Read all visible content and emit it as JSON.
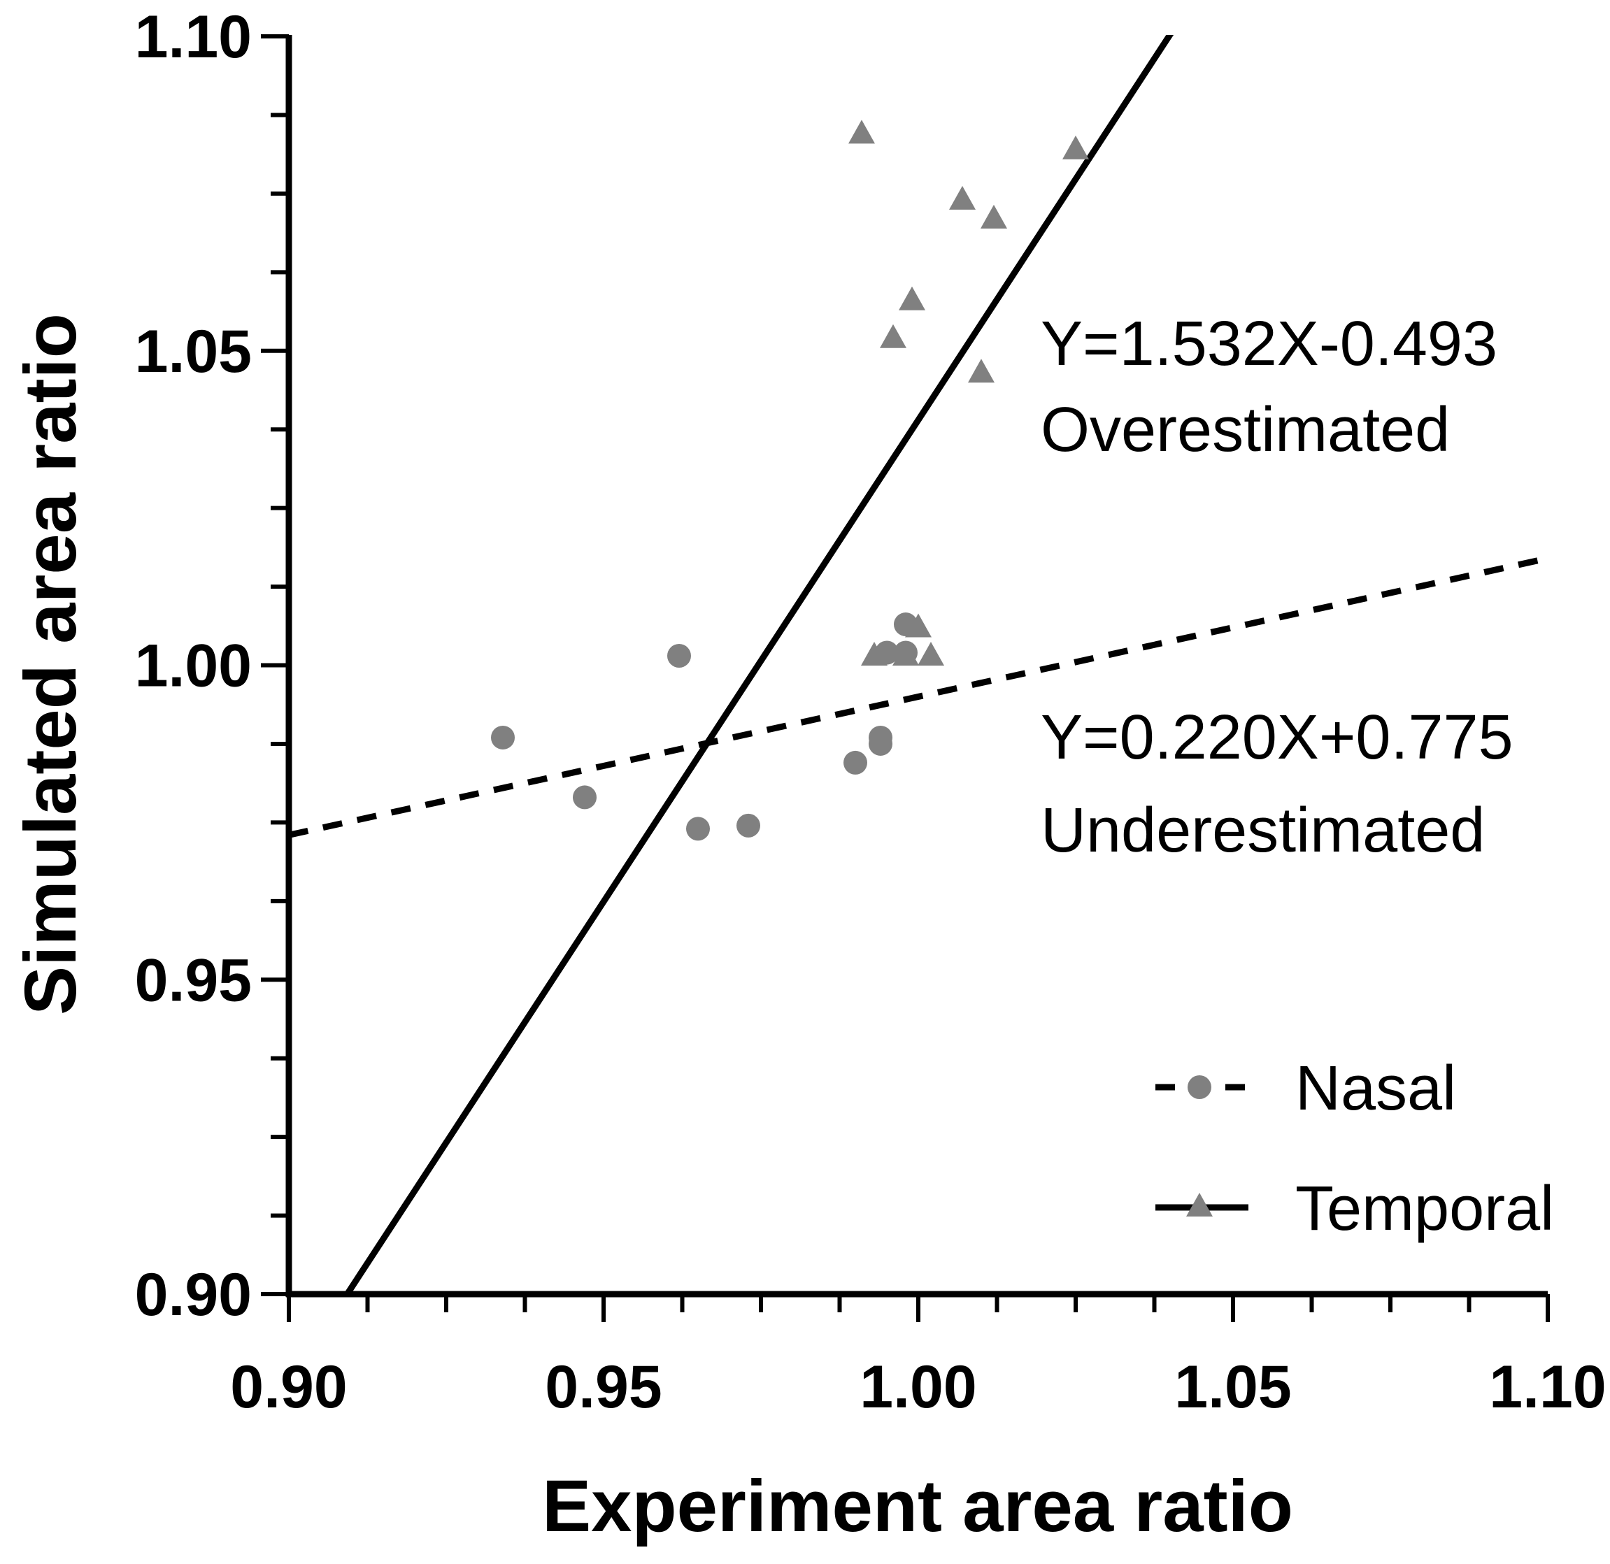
{
  "chart_data": {
    "type": "scatter",
    "xlabel": "Experiment area ratio",
    "ylabel": "Simulated area ratio",
    "xlim": [
      0.9,
      1.1
    ],
    "ylim": [
      0.9,
      1.1
    ],
    "x_ticks": [
      "0.90",
      "0.95",
      "1.00",
      "1.05",
      "1.10"
    ],
    "y_ticks": [
      "0.90",
      "0.95",
      "1.00",
      "1.05",
      "1.10"
    ],
    "x_tick_values": [
      0.9,
      0.95,
      1.0,
      1.05,
      1.1
    ],
    "y_tick_values": [
      0.9,
      0.95,
      1.0,
      1.05,
      1.1
    ],
    "minor_tick_step": 0.0125,
    "series": [
      {
        "name": "Nasal",
        "marker": "circle",
        "line_style": "dashed",
        "color": "#808080",
        "points": [
          {
            "x": 0.934,
            "y": 0.9885
          },
          {
            "x": 0.947,
            "y": 0.979
          },
          {
            "x": 0.962,
            "y": 1.0015
          },
          {
            "x": 0.965,
            "y": 0.974
          },
          {
            "x": 0.973,
            "y": 0.9745
          },
          {
            "x": 0.99,
            "y": 0.9845
          },
          {
            "x": 0.994,
            "y": 0.9875
          },
          {
            "x": 0.994,
            "y": 0.9885
          },
          {
            "x": 0.995,
            "y": 1.002
          },
          {
            "x": 0.998,
            "y": 1.0065
          },
          {
            "x": 0.998,
            "y": 1.002
          }
        ],
        "fit": {
          "slope": 0.22,
          "intercept": 0.775,
          "x_range": [
            0.9,
            1.1
          ]
        },
        "equation_text": "Y=0.220X+0.775",
        "estimate_text": "Underestimated"
      },
      {
        "name": "Temporal",
        "marker": "triangle",
        "line_style": "solid",
        "color": "#808080",
        "points": [
          {
            "x": 0.991,
            "y": 1.0845
          },
          {
            "x": 1.025,
            "y": 1.082
          },
          {
            "x": 1.007,
            "y": 1.074
          },
          {
            "x": 1.012,
            "y": 1.071
          },
          {
            "x": 0.999,
            "y": 1.058
          },
          {
            "x": 0.996,
            "y": 1.052
          },
          {
            "x": 1.01,
            "y": 1.0465
          },
          {
            "x": 1.0,
            "y": 1.006
          },
          {
            "x": 0.993,
            "y": 1.0015
          },
          {
            "x": 0.998,
            "y": 1.0015
          },
          {
            "x": 1.002,
            "y": 1.0015
          }
        ],
        "fit": {
          "slope": 1.532,
          "intercept": -0.493,
          "x_range": [
            0.9,
            1.1
          ]
        },
        "equation_text": "Y=1.532X-0.493",
        "estimate_text": "Overestimated"
      }
    ],
    "legend": {
      "position": "bottom-right",
      "entries": [
        "Nasal",
        "Temporal"
      ]
    }
  }
}
